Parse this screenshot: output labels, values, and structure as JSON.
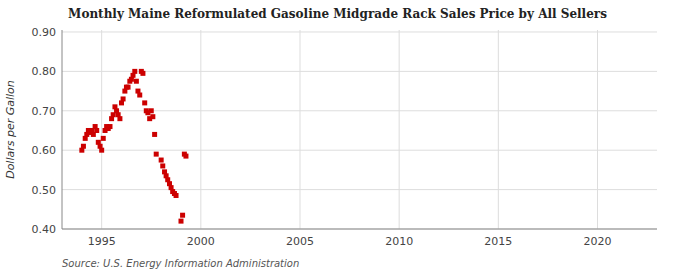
{
  "chart_data": {
    "type": "scatter",
    "title": "Monthly Maine Reformulated Gasoline Midgrade Rack Sales Price by All Sellers",
    "ylabel": "Dollars per Gallon",
    "source": "Source: U.S. Energy Information Administration",
    "color": "#cc0000",
    "marker": "square",
    "grid": true,
    "xlim": [
      1993.0,
      2023.0
    ],
    "ylim": [
      0.4,
      0.905
    ],
    "xticks": [
      1995,
      2000,
      2005,
      2010,
      2015,
      2020
    ],
    "yticks": [
      {
        "value": 0.4,
        "label": "0.40"
      },
      {
        "value": 0.5,
        "label": "0.50"
      },
      {
        "value": 0.6,
        "label": "0.60"
      },
      {
        "value": 0.7,
        "label": "0.70"
      },
      {
        "value": 0.8,
        "label": "0.80"
      },
      {
        "value": 0.9,
        "label": "0.90"
      }
    ],
    "x": [
      1994.0,
      1994.08,
      1994.17,
      1994.25,
      1994.33,
      1994.42,
      1994.5,
      1994.58,
      1994.67,
      1994.75,
      1994.83,
      1994.92,
      1995.0,
      1995.08,
      1995.17,
      1995.25,
      1995.33,
      1995.42,
      1995.5,
      1995.58,
      1995.67,
      1995.75,
      1995.83,
      1995.92,
      1996.0,
      1996.08,
      1996.17,
      1996.25,
      1996.33,
      1996.42,
      1996.5,
      1996.58,
      1996.67,
      1996.75,
      1996.83,
      1996.92,
      1997.0,
      1997.08,
      1997.17,
      1997.25,
      1997.33,
      1997.42,
      1997.5,
      1997.58,
      1997.67,
      1997.75,
      1998.0,
      1998.08,
      1998.17,
      1998.25,
      1998.33,
      1998.42,
      1998.5,
      1998.58,
      1998.67,
      1998.75,
      1999.0,
      1999.08,
      1999.17,
      1999.25
    ],
    "values": [
      0.6,
      0.61,
      0.63,
      0.64,
      0.65,
      0.645,
      0.65,
      0.64,
      0.66,
      0.65,
      0.62,
      0.61,
      0.6,
      0.63,
      0.65,
      0.66,
      0.655,
      0.66,
      0.68,
      0.69,
      0.71,
      0.7,
      0.69,
      0.68,
      0.72,
      0.73,
      0.75,
      0.76,
      0.76,
      0.775,
      0.78,
      0.79,
      0.8,
      0.775,
      0.75,
      0.74,
      0.8,
      0.795,
      0.72,
      0.7,
      0.695,
      0.68,
      0.7,
      0.685,
      0.64,
      0.59,
      0.575,
      0.56,
      0.545,
      0.535,
      0.525,
      0.515,
      0.505,
      0.495,
      0.49,
      0.485,
      0.42,
      0.435,
      0.59,
      0.585
    ]
  }
}
